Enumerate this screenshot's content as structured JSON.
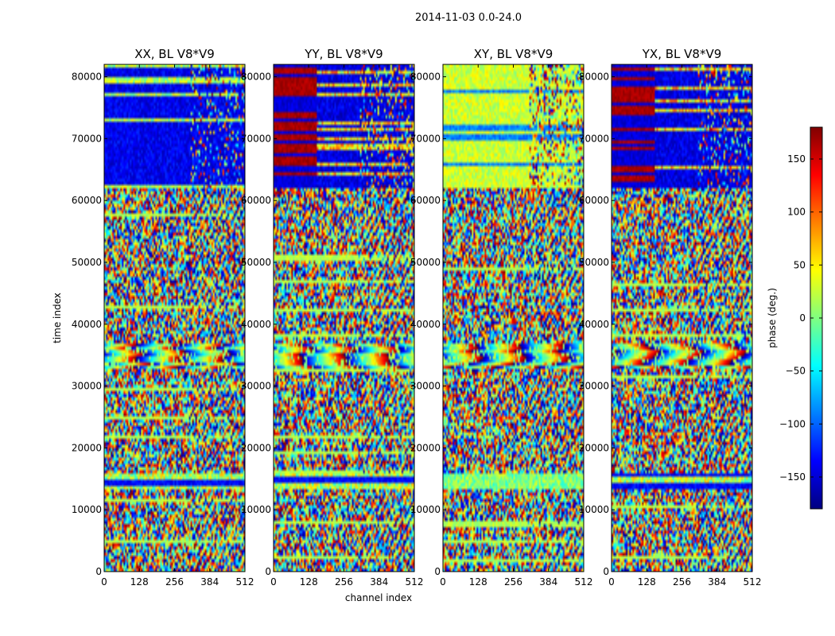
{
  "chart_data": {
    "type": "heatmap",
    "suptitle": "2014-11-03 0.0-24.0",
    "xlabel": "channel index",
    "ylabel": "time index",
    "xlim": [
      0,
      512
    ],
    "ylim": [
      0,
      82000
    ],
    "x_ticks": [
      "0",
      "128",
      "256",
      "384",
      "512"
    ],
    "x_tick_values": [
      0,
      128,
      256,
      384,
      512
    ],
    "y_ticks": [
      "0",
      "10000",
      "20000",
      "30000",
      "40000",
      "50000",
      "60000",
      "70000",
      "80000"
    ],
    "y_tick_values": [
      0,
      10000,
      20000,
      30000,
      40000,
      50000,
      60000,
      70000,
      80000
    ],
    "panels": [
      {
        "pol": "XX",
        "title": "XX, BL V8*V9",
        "flavor": "blue"
      },
      {
        "pol": "YY",
        "title": "YY, BL V8*V9",
        "flavor": "redblue"
      },
      {
        "pol": "XY",
        "title": "XY, BL V8*V9",
        "flavor": "green"
      },
      {
        "pol": "YX",
        "title": "YX, BL V8*V9",
        "flavor": "redblue"
      }
    ],
    "colorbar": {
      "label": "phase (deg.)",
      "range": [
        -180,
        180
      ],
      "ticks": [
        "150",
        "100",
        "50",
        "0",
        "−50",
        "−100",
        "−150"
      ],
      "tick_values": [
        150,
        100,
        50,
        0,
        -50,
        -100,
        -150
      ],
      "colormap": "jet"
    }
  }
}
